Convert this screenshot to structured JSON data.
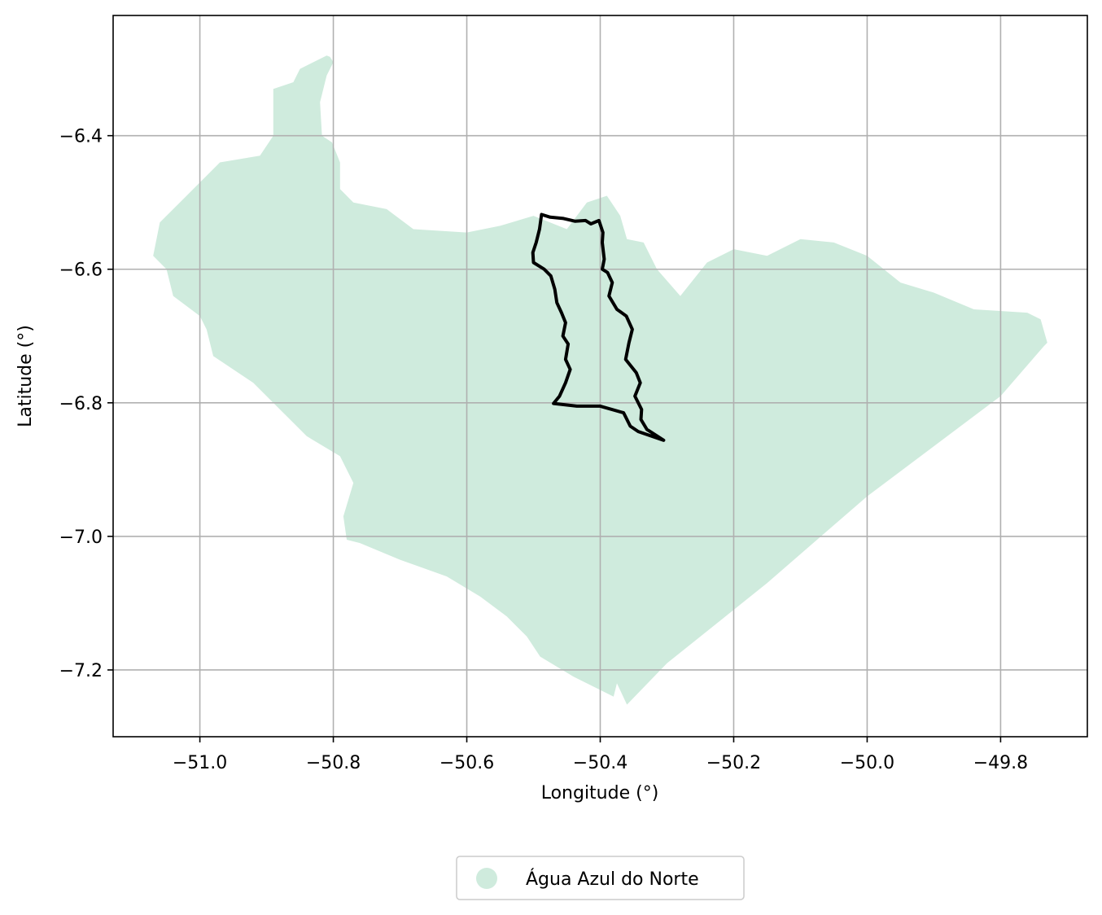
{
  "map": {
    "xlabel": "Longitude (°)",
    "ylabel": "Latitude (°)",
    "xlim": [
      -51.13,
      -49.67
    ],
    "ylim": [
      -7.3,
      -6.22
    ],
    "x_ticks": [
      -51.0,
      -50.8,
      -50.6,
      -50.4,
      -50.2,
      -50.0,
      -49.8
    ],
    "x_tick_labels": [
      "−51.0",
      "−50.8",
      "−50.6",
      "−50.4",
      "−50.2",
      "−50.0",
      "−49.8"
    ],
    "y_ticks": [
      -6.4,
      -6.6,
      -6.8,
      -7.0,
      -7.2
    ],
    "y_tick_labels": [
      "−6.4",
      "−6.6",
      "−6.8",
      "−7.0",
      "−7.2"
    ],
    "grid": true,
    "legend": {
      "position": "below",
      "entries": [
        {
          "label": "Água Azul do Norte",
          "color": "#cfebdd"
        }
      ]
    },
    "colors": {
      "region_fill": "#cfebdd",
      "outline": "#000000",
      "grid": "#b0b0b0"
    },
    "regions": [
      {
        "name": "Água Azul do Norte",
        "fill": "#cfebdd",
        "coords": [
          [
            -50.805,
            -6.282
          ],
          [
            -50.8,
            -6.29
          ],
          [
            -50.81,
            -6.31
          ],
          [
            -50.82,
            -6.35
          ],
          [
            -50.817,
            -6.4
          ],
          [
            -50.802,
            -6.41
          ],
          [
            -50.79,
            -6.44
          ],
          [
            -50.79,
            -6.48
          ],
          [
            -50.77,
            -6.5
          ],
          [
            -50.72,
            -6.51
          ],
          [
            -50.68,
            -6.54
          ],
          [
            -50.6,
            -6.545
          ],
          [
            -50.55,
            -6.535
          ],
          [
            -50.5,
            -6.52
          ],
          [
            -50.45,
            -6.54
          ],
          [
            -50.42,
            -6.5
          ],
          [
            -50.39,
            -6.49
          ],
          [
            -50.37,
            -6.52
          ],
          [
            -50.36,
            -6.555
          ],
          [
            -50.335,
            -6.56
          ],
          [
            -50.315,
            -6.6
          ],
          [
            -50.28,
            -6.64
          ],
          [
            -50.24,
            -6.59
          ],
          [
            -50.2,
            -6.57
          ],
          [
            -50.15,
            -6.58
          ],
          [
            -50.1,
            -6.555
          ],
          [
            -50.05,
            -6.56
          ],
          [
            -50.0,
            -6.58
          ],
          [
            -49.95,
            -6.62
          ],
          [
            -49.9,
            -6.635
          ],
          [
            -49.84,
            -6.66
          ],
          [
            -49.76,
            -6.665
          ],
          [
            -49.74,
            -6.675
          ],
          [
            -49.73,
            -6.71
          ],
          [
            -49.735,
            -6.715
          ],
          [
            -49.8,
            -6.79
          ],
          [
            -50.0,
            -6.94
          ],
          [
            -50.15,
            -7.07
          ],
          [
            -50.3,
            -7.19
          ],
          [
            -50.36,
            -7.252
          ],
          [
            -50.375,
            -7.22
          ],
          [
            -50.38,
            -7.24
          ],
          [
            -50.44,
            -7.21
          ],
          [
            -50.49,
            -7.18
          ],
          [
            -50.51,
            -7.15
          ],
          [
            -50.54,
            -7.12
          ],
          [
            -50.58,
            -7.09
          ],
          [
            -50.63,
            -7.06
          ],
          [
            -50.7,
            -7.035
          ],
          [
            -50.76,
            -7.01
          ],
          [
            -50.78,
            -7.005
          ],
          [
            -50.785,
            -6.97
          ],
          [
            -50.77,
            -6.92
          ],
          [
            -50.79,
            -6.88
          ],
          [
            -50.84,
            -6.85
          ],
          [
            -50.88,
            -6.81
          ],
          [
            -50.92,
            -6.77
          ],
          [
            -50.98,
            -6.73
          ],
          [
            -50.99,
            -6.69
          ],
          [
            -51.0,
            -6.67
          ],
          [
            -51.04,
            -6.64
          ],
          [
            -51.05,
            -6.6
          ],
          [
            -51.07,
            -6.58
          ],
          [
            -51.06,
            -6.53
          ],
          [
            -51.03,
            -6.5
          ],
          [
            -50.97,
            -6.44
          ],
          [
            -50.91,
            -6.43
          ],
          [
            -50.89,
            -6.4
          ],
          [
            -50.89,
            -6.33
          ],
          [
            -50.86,
            -6.32
          ],
          [
            -50.85,
            -6.3
          ],
          [
            -50.81,
            -6.28
          ]
        ]
      }
    ],
    "outlines": [
      {
        "coords": [
          [
            -50.488,
            -6.518
          ],
          [
            -50.475,
            -6.522
          ],
          [
            -50.455,
            -6.524
          ],
          [
            -50.438,
            -6.528
          ],
          [
            -50.422,
            -6.527
          ],
          [
            -50.414,
            -6.532
          ],
          [
            -50.402,
            -6.527
          ],
          [
            -50.396,
            -6.545
          ],
          [
            -50.397,
            -6.56
          ],
          [
            -50.394,
            -6.585
          ],
          [
            -50.397,
            -6.6
          ],
          [
            -50.389,
            -6.605
          ],
          [
            -50.382,
            -6.62
          ],
          [
            -50.387,
            -6.64
          ],
          [
            -50.375,
            -6.66
          ],
          [
            -50.361,
            -6.67
          ],
          [
            -50.352,
            -6.69
          ],
          [
            -50.357,
            -6.71
          ],
          [
            -50.362,
            -6.735
          ],
          [
            -50.346,
            -6.755
          ],
          [
            -50.34,
            -6.77
          ],
          [
            -50.348,
            -6.79
          ],
          [
            -50.338,
            -6.81
          ],
          [
            -50.339,
            -6.825
          ],
          [
            -50.33,
            -6.84
          ],
          [
            -50.305,
            -6.856
          ],
          [
            -50.343,
            -6.843
          ],
          [
            -50.355,
            -6.835
          ],
          [
            -50.365,
            -6.815
          ],
          [
            -50.4,
            -6.805
          ],
          [
            -50.435,
            -6.805
          ],
          [
            -50.47,
            -6.801
          ],
          [
            -50.461,
            -6.79
          ],
          [
            -50.452,
            -6.77
          ],
          [
            -50.445,
            -6.75
          ],
          [
            -50.452,
            -6.735
          ],
          [
            -50.448,
            -6.712
          ],
          [
            -50.456,
            -6.7
          ],
          [
            -50.452,
            -6.68
          ],
          [
            -50.458,
            -6.665
          ],
          [
            -50.465,
            -6.65
          ],
          [
            -50.468,
            -6.63
          ],
          [
            -50.474,
            -6.61
          ],
          [
            -50.484,
            -6.6
          ],
          [
            -50.5,
            -6.59
          ],
          [
            -50.501,
            -6.575
          ],
          [
            -50.496,
            -6.56
          ],
          [
            -50.491,
            -6.54
          ],
          [
            -50.488,
            -6.518
          ]
        ]
      }
    ]
  }
}
